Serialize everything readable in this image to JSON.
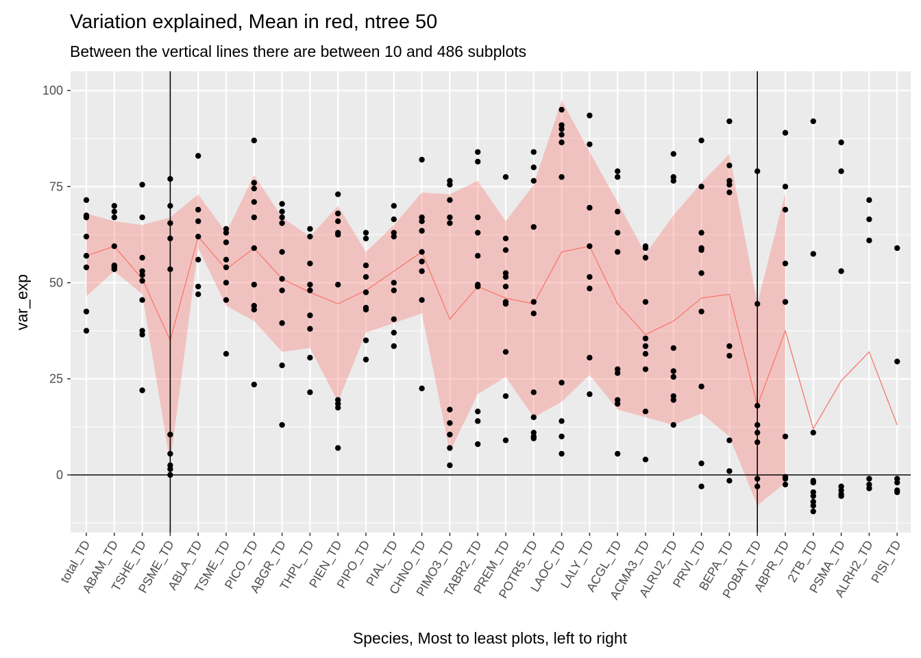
{
  "chart_data": {
    "type": "scatter",
    "title": "Variation explained, Mean in red, ntree 50",
    "subtitle": "Between the vertical lines there are between 10 and 486 subplots",
    "xlabel": "Species, Most to least plots, left to right",
    "ylabel": "var_exp",
    "ylim": [
      -15,
      105
    ],
    "yticks": [
      0,
      25,
      50,
      75,
      100
    ],
    "grid": true,
    "vlines_at": [
      "PSME_TD",
      "POBAT_TD"
    ],
    "hline_at": 0,
    "colors": {
      "mean": "#f8766d",
      "band": "#f8766d",
      "points": "#000000",
      "panel": "#ebebeb",
      "grid": "#ffffff"
    },
    "categories": [
      "total_TD",
      "ABAM_TD",
      "TSHE_TD",
      "PSME_TD",
      "ABLA_TD",
      "TSME_TD",
      "PICO_TD",
      "ABGR_TD",
      "THPL_TD",
      "PIEN_TD",
      "PIPO_TD",
      "PIAL_TD",
      "CHNO_TD",
      "PIMO3_TD",
      "TABR2_TD",
      "PREM_TD",
      "POTR5_TD",
      "LAOC_TD",
      "LALY_TD",
      "ACGL_TD",
      "ACMA3_TD",
      "ALRU2_TD",
      "PRVI_TD",
      "BEPA_TD",
      "POBAT_TD",
      "ABPR_TD",
      "2TB_TD",
      "PSMA_TD",
      "ALRH2_TD",
      "PISI_TD"
    ],
    "mean": [
      57,
      59.5,
      51,
      35,
      62,
      53.5,
      59,
      51,
      47.5,
      44.5,
      48,
      53,
      58,
      40.5,
      49,
      46,
      44.5,
      58,
      59.5,
      44.5,
      36.5,
      40,
      46,
      47,
      18,
      37.5,
      12,
      24.5,
      32,
      13
    ],
    "band_lower": [
      46.5,
      53,
      47,
      3,
      59,
      44,
      40,
      32,
      33,
      19,
      37,
      39.5,
      42,
      6,
      21,
      25.5,
      15,
      19,
      26,
      17,
      15,
      13,
      16,
      10,
      -8,
      -2,
      null,
      null,
      null,
      null
    ],
    "band_upper": [
      68,
      66,
      65,
      67,
      73,
      63,
      78,
      67,
      62,
      70,
      58,
      65,
      73.5,
      73,
      76.5,
      66,
      75.5,
      97.5,
      84,
      71,
      57.5,
      67.5,
      76,
      83.5,
      44.5,
      73.5,
      null,
      null,
      null,
      null
    ],
    "points": [
      [
        71.5,
        67.5,
        67,
        62,
        57,
        54,
        42.5,
        37.5
      ],
      [
        70,
        68.5,
        67,
        59.5,
        54.5,
        54,
        53.5
      ],
      [
        75.5,
        67,
        56.5,
        53,
        52,
        50.5,
        45.5,
        37.5,
        36.5,
        22
      ],
      [
        77,
        70,
        65.5,
        61.5,
        53.5,
        10.5,
        5.5,
        2.5,
        1.5,
        0
      ],
      [
        83,
        69,
        66,
        62,
        56,
        49,
        47
      ],
      [
        64,
        63,
        60.5,
        56,
        54,
        50,
        45.5,
        31.5
      ],
      [
        87,
        76,
        74.5,
        71,
        67,
        59,
        49.5,
        44,
        43,
        23.5
      ],
      [
        70.5,
        68.5,
        67,
        65.5,
        58,
        51,
        48,
        39.5,
        28.5,
        13
      ],
      [
        64,
        62,
        55,
        49.5,
        48,
        41.5,
        38,
        30.5,
        21.5
      ],
      [
        73,
        68,
        66,
        63,
        62.5,
        49.5,
        19.5,
        18.5,
        17.5,
        7
      ],
      [
        63,
        61.5,
        54.5,
        51.5,
        47.5,
        43.5,
        43,
        35,
        30
      ],
      [
        70,
        66.5,
        63,
        62,
        50,
        48,
        40.5,
        37,
        33.5
      ],
      [
        82,
        67,
        66,
        63.5,
        58,
        55.5,
        53,
        45.5,
        22.5
      ],
      [
        76.5,
        75.5,
        71.5,
        67,
        65.5,
        17,
        13.5,
        10.5,
        7,
        2.5
      ],
      [
        84,
        81.5,
        67,
        63,
        57,
        49.5,
        49,
        16.5,
        14,
        8
      ],
      [
        77.5,
        61.5,
        58.5,
        52.5,
        51.5,
        49,
        45,
        44.5,
        32,
        20.5,
        9
      ],
      [
        84,
        80,
        76.5,
        64.5,
        45,
        42,
        21.5,
        15,
        11,
        10,
        9.5
      ],
      [
        95,
        91,
        90,
        88.5,
        86.5,
        77.5,
        24,
        14,
        10,
        5.5
      ],
      [
        93.5,
        86,
        69.5,
        59.5,
        51.5,
        48.5,
        30.5,
        21
      ],
      [
        79,
        77.5,
        68.5,
        63,
        58,
        27.5,
        26.5,
        19.5,
        18.5,
        5.5
      ],
      [
        59.5,
        59,
        56.5,
        45,
        35.5,
        33.5,
        31.5,
        27.5,
        16.5,
        4
      ],
      [
        83.5,
        77.5,
        76.5,
        33,
        27,
        25.5,
        20.5,
        19.5,
        13
      ],
      [
        87,
        75,
        63,
        59,
        58.5,
        52.5,
        42.5,
        23,
        3,
        -3
      ],
      [
        92,
        80.5,
        76.5,
        75.5,
        73.5,
        33.5,
        31,
        9,
        1,
        -1.5
      ],
      [
        79,
        44.5,
        18,
        13,
        11,
        8.5,
        -1,
        -3
      ],
      [
        89,
        75,
        69,
        55,
        45,
        10,
        -0.5,
        -1,
        -2.5
      ],
      [
        92,
        57.5,
        11,
        -1.5,
        -2,
        -4.5,
        -5.5,
        -7,
        -8,
        -9.5
      ],
      [
        86.5,
        79,
        53,
        -3,
        -4,
        -5,
        -5.5
      ],
      [
        71.5,
        66.5,
        61,
        -1,
        -2.5,
        -3.5
      ],
      [
        59,
        29.5,
        -1,
        -2,
        -4,
        -4.5
      ]
    ]
  }
}
